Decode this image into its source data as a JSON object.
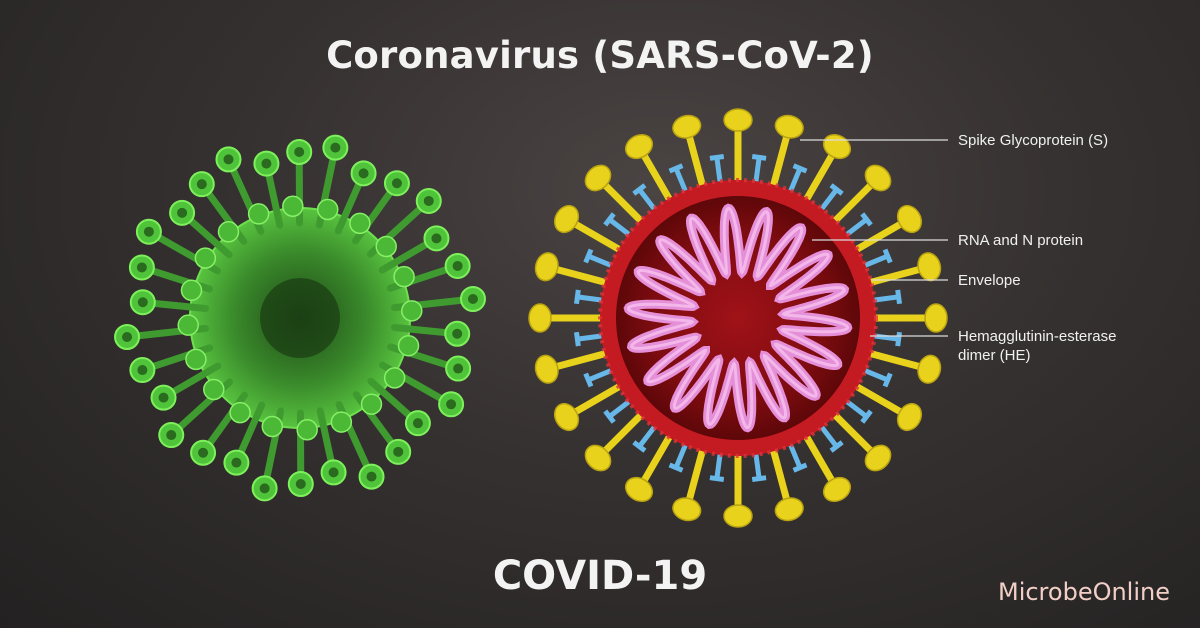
{
  "header": {
    "title": "Coronavirus (SARS-CoV-2)"
  },
  "footer": {
    "subtitle": "COVID-19",
    "brand": "MicrobeOnline"
  },
  "diagram": {
    "labels": [
      {
        "id": "spike",
        "text": "Spike Glycoprotein (S)"
      },
      {
        "id": "rna",
        "text": "RNA and N protein"
      },
      {
        "id": "envelope",
        "text": "Envelope"
      },
      {
        "id": "he",
        "text": "Hemagglutinin-esterase\ndimer (HE)"
      }
    ]
  },
  "colors": {
    "green_virus": "#4fc43a",
    "spike": "#e8d21b",
    "envelope": "#b8161c",
    "rna": "#e58fd8",
    "he": "#67b7e8",
    "line": "#dcdcdc"
  }
}
